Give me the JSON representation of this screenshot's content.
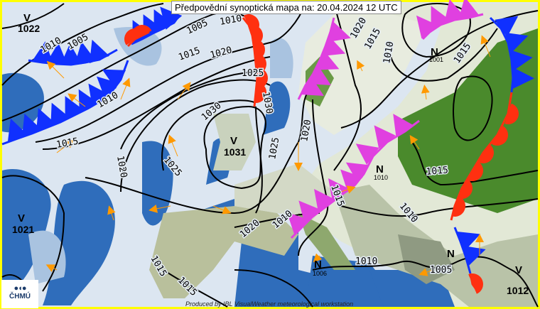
{
  "header": {
    "title": "Předpovědní synoptická mapa na: 20.04.2024 12 UTC"
  },
  "footer": {
    "credit": "Produced by IBL VisualWeather meteorological workstation"
  },
  "logo": {
    "text": "ČHMÚ"
  },
  "colors": {
    "cold_front": "#1030ff",
    "warm_front": "#ff3010",
    "occluded_front": "#e040e0",
    "isobar": "#000000",
    "border": "#ffff00",
    "wind_arrow": "#ff9900"
  },
  "pressure_centers": [
    {
      "type": "V",
      "value": "1022"
    },
    {
      "type": "V",
      "value": "1021"
    },
    {
      "type": "V",
      "value": "1031"
    },
    {
      "type": "V",
      "value": "1012"
    },
    {
      "type": "N",
      "value": "1001"
    },
    {
      "type": "N",
      "value": "1010"
    },
    {
      "type": "N",
      "value": "1006"
    },
    {
      "type": "N",
      "value": ""
    }
  ],
  "isobar_labels": [
    "1005",
    "1010",
    "1005",
    "1010",
    "1015",
    "1020",
    "1025",
    "1030",
    "1030",
    "1010",
    "1015",
    "1020",
    "1025",
    "1015",
    "1010",
    "1020",
    "1015",
    "1010",
    "1015",
    "1025",
    "1020",
    "1020",
    "1015",
    "1010",
    "1010",
    "1005",
    "1015",
    "1015"
  ]
}
